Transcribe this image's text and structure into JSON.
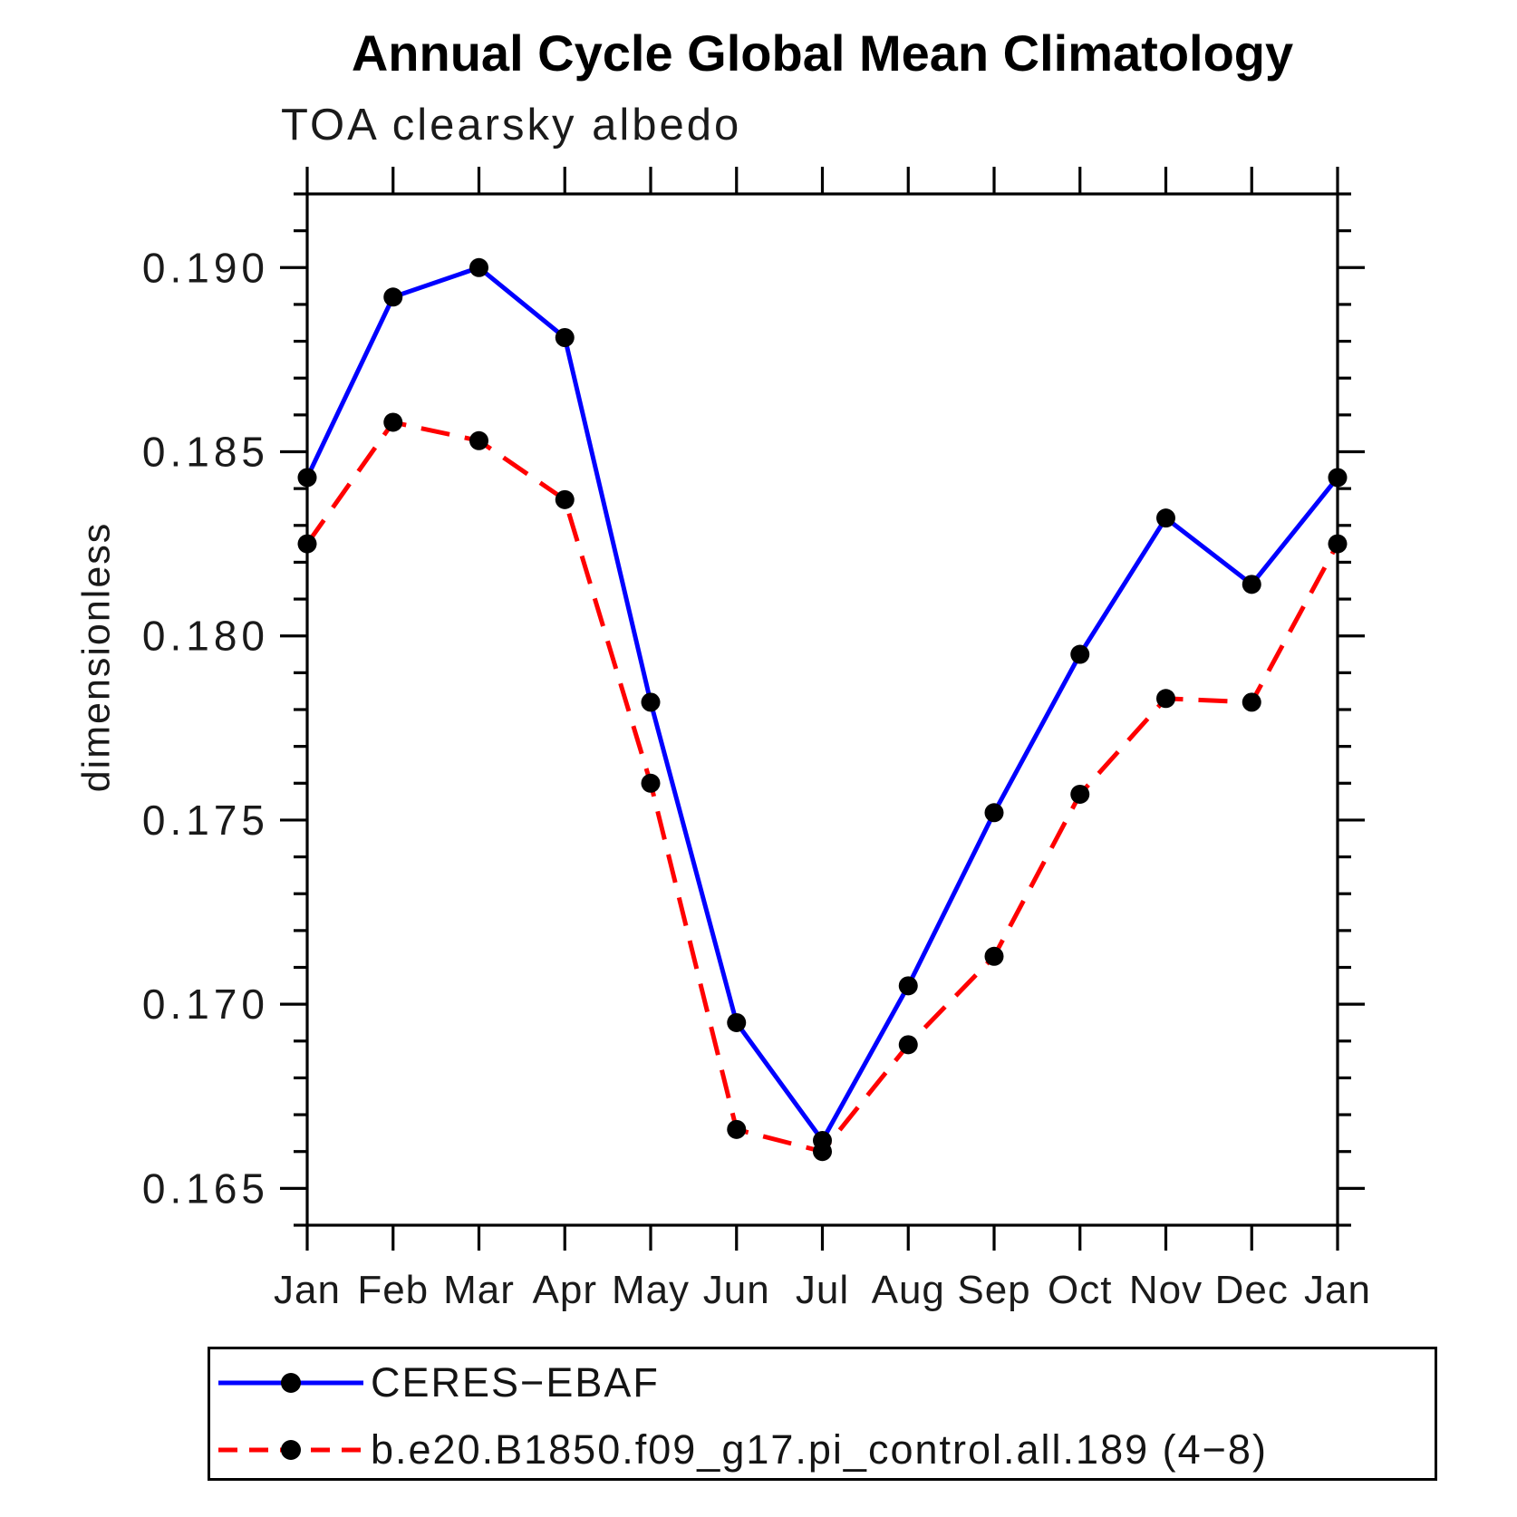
{
  "chart_data": {
    "type": "line",
    "title": "Annual Cycle Global Mean Climatology",
    "subtitle": "TOA clearsky albedo",
    "ylabel": "dimensionless",
    "categories": [
      "Jan",
      "Feb",
      "Mar",
      "Apr",
      "May",
      "Jun",
      "Jul",
      "Aug",
      "Sep",
      "Oct",
      "Nov",
      "Dec",
      "Jan"
    ],
    "ylim": [
      0.164,
      0.192
    ],
    "y_ticks": [
      0.165,
      0.17,
      0.175,
      0.18,
      0.185,
      0.19
    ],
    "y_tick_labels": [
      "0.165",
      "0.170",
      "0.175",
      "0.180",
      "0.185",
      "0.190"
    ],
    "y_minor_step": 0.001,
    "grid": false,
    "legend_position": "bottom",
    "axis_color": "#000000",
    "series": [
      {
        "name": "CERES−EBAF",
        "color": "#0000ff",
        "line_style": "solid",
        "marker": "circle",
        "marker_color": "#000000",
        "values": [
          0.1843,
          0.1892,
          0.19,
          0.1881,
          0.1782,
          0.1695,
          0.1663,
          0.1705,
          0.1752,
          0.1795,
          0.1832,
          0.1814,
          0.1843
        ]
      },
      {
        "name": "b.e20.B1850.f09_g17.pi_control.all.189 (4−8)",
        "color": "#ff0000",
        "line_style": "dashed",
        "marker": "circle",
        "marker_color": "#000000",
        "values": [
          0.1825,
          0.1858,
          0.1853,
          0.1837,
          0.176,
          0.1666,
          0.166,
          0.1689,
          0.1713,
          0.1757,
          0.1783,
          0.1782,
          0.1825
        ]
      }
    ]
  }
}
